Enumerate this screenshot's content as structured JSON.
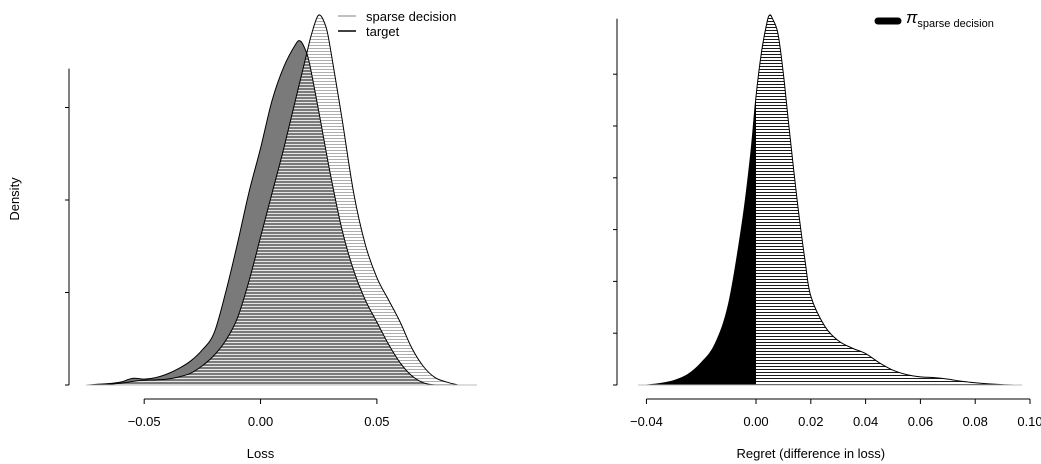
{
  "chart_data": [
    {
      "type": "area",
      "xlabel": "Loss",
      "ylabel": "Density",
      "xlim": [
        -0.075,
        0.087
      ],
      "ylim": [
        0,
        1.0
      ],
      "x_ticks": [
        -0.05,
        0.0,
        0.05
      ],
      "x_tick_labels": [
        "−0.05",
        "0.00",
        "0.05"
      ],
      "y_ticks": [
        0.0,
        0.25,
        0.5,
        0.75
      ],
      "legend": {
        "placement": "top-right",
        "entries": [
          "sparse decision",
          "target"
        ]
      },
      "series": [
        {
          "name": "sparse decision",
          "fill": "#ffffff",
          "stroke": "#000000",
          "x": [
            -0.068,
            -0.06,
            -0.052,
            -0.045,
            -0.04,
            -0.035,
            -0.03,
            -0.025,
            -0.02,
            -0.015,
            -0.01,
            -0.005,
            0.0,
            0.005,
            0.01,
            0.015,
            0.02,
            0.022,
            0.025,
            0.028,
            0.03,
            0.035,
            0.04,
            0.045,
            0.05,
            0.055,
            0.06,
            0.065,
            0.07,
            0.075,
            0.08,
            0.085
          ],
          "y": [
            0.0,
            0.005,
            0.012,
            0.014,
            0.016,
            0.022,
            0.032,
            0.052,
            0.08,
            0.12,
            0.18,
            0.28,
            0.4,
            0.52,
            0.64,
            0.77,
            0.9,
            0.95,
            1.0,
            0.97,
            0.91,
            0.72,
            0.52,
            0.38,
            0.29,
            0.23,
            0.17,
            0.1,
            0.05,
            0.02,
            0.008,
            0.0
          ]
        },
        {
          "name": "target",
          "fill": "#7a7a7a",
          "stroke": "#000000",
          "x": [
            -0.075,
            -0.065,
            -0.06,
            -0.055,
            -0.05,
            -0.045,
            -0.04,
            -0.035,
            -0.03,
            -0.025,
            -0.02,
            -0.015,
            -0.01,
            -0.005,
            0.0,
            0.005,
            0.01,
            0.015,
            0.017,
            0.019,
            0.021,
            0.025,
            0.03,
            0.035,
            0.04,
            0.045,
            0.05,
            0.055,
            0.06,
            0.065,
            0.07,
            0.075
          ],
          "y": [
            0.0,
            0.004,
            0.008,
            0.018,
            0.016,
            0.02,
            0.03,
            0.045,
            0.065,
            0.095,
            0.14,
            0.25,
            0.38,
            0.52,
            0.64,
            0.77,
            0.86,
            0.92,
            0.93,
            0.91,
            0.87,
            0.74,
            0.57,
            0.42,
            0.31,
            0.23,
            0.17,
            0.11,
            0.06,
            0.025,
            0.006,
            0.0
          ]
        }
      ]
    },
    {
      "type": "area",
      "xlabel": "Regret (difference in loss)",
      "ylabel": "",
      "xlim": [
        -0.046,
        0.1
      ],
      "ylim": [
        0,
        1.0
      ],
      "x_ticks": [
        -0.04,
        0.0,
        0.02,
        0.04,
        0.06,
        0.08,
        0.1
      ],
      "x_tick_labels": [
        "−0.04",
        "0.00",
        "0.02",
        "0.04",
        "0.06",
        "0.08",
        "0.10"
      ],
      "y_ticks": [
        0.0,
        0.14,
        0.28,
        0.42,
        0.56,
        0.7,
        0.84
      ],
      "legend": {
        "placement": "top-right",
        "entries": [
          {
            "symbol": "π",
            "subscript": "sparse decision"
          }
        ]
      },
      "series": [
        {
          "name": "πsparse decision",
          "fill_negative": "#000000",
          "fill_positive": "#ffffff",
          "stroke": "#000000",
          "x": [
            -0.04,
            -0.035,
            -0.03,
            -0.025,
            -0.02,
            -0.015,
            -0.01,
            -0.005,
            -0.002,
            0.0,
            0.002,
            0.004,
            0.005,
            0.006,
            0.008,
            0.01,
            0.012,
            0.015,
            0.018,
            0.02,
            0.025,
            0.03,
            0.035,
            0.04,
            0.045,
            0.05,
            0.055,
            0.06,
            0.065,
            0.07,
            0.075,
            0.08,
            0.085,
            0.09,
            0.095
          ],
          "y": [
            0.0,
            0.004,
            0.012,
            0.028,
            0.06,
            0.11,
            0.22,
            0.44,
            0.62,
            0.78,
            0.9,
            0.98,
            1.0,
            0.99,
            0.95,
            0.84,
            0.7,
            0.5,
            0.33,
            0.24,
            0.16,
            0.12,
            0.1,
            0.085,
            0.06,
            0.04,
            0.028,
            0.022,
            0.02,
            0.016,
            0.01,
            0.006,
            0.003,
            0.001,
            0.0
          ]
        }
      ]
    }
  ]
}
